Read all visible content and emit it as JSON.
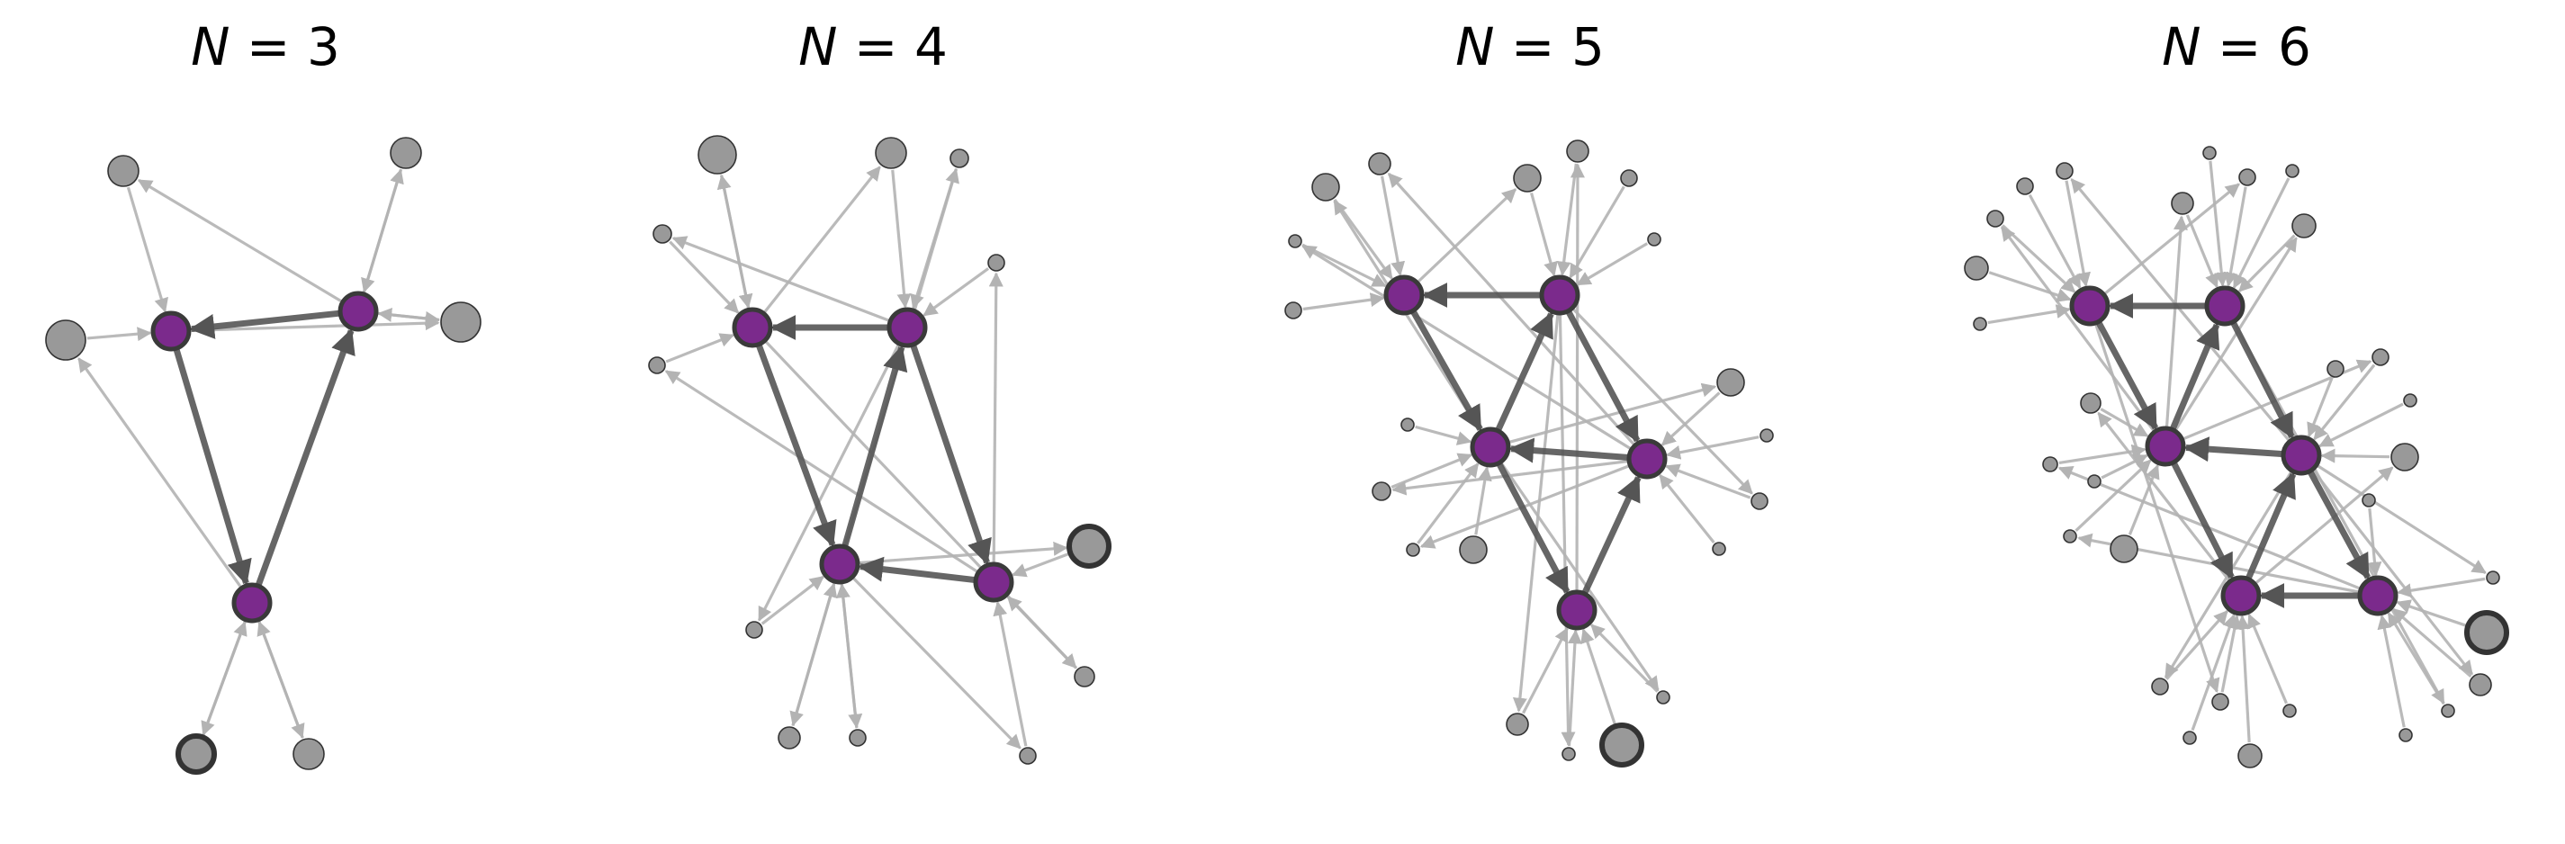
{
  "panels": [
    {
      "title": "N = 3",
      "core": 3
    },
    {
      "title": "N = 4",
      "core": 4
    },
    {
      "title": "N = 5",
      "core": 5
    },
    {
      "title": "N = 6",
      "core": 6
    }
  ],
  "colors": {
    "core_fill": "#7B2A8C",
    "core_stroke": "#3a3a3a",
    "peripheral_fill": "#999999",
    "peripheral_stroke": "#333333",
    "core_edge": "#555555",
    "peripheral_edge": "#b3b3b3"
  }
}
